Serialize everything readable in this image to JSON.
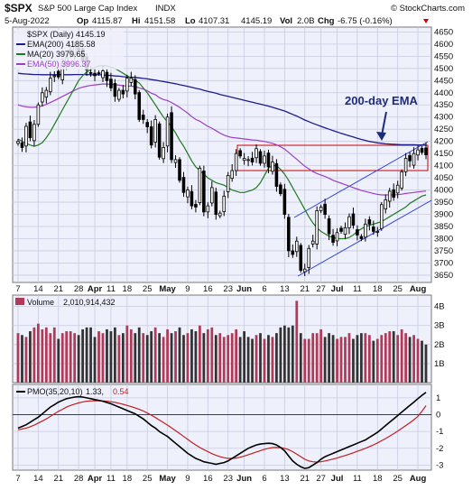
{
  "header": {
    "symbol": "$SPX",
    "name": "S&P 500 Large Cap Index",
    "exchange": "INDX",
    "date": "5-Aug-2022",
    "op_label": "Op",
    "op": "4115.87",
    "hi_label": "Hi",
    "hi": "4151.58",
    "lo_label": "Lo",
    "lo": "4107.31",
    "close": "4145.19",
    "vol_label": "Vol",
    "vol": "2.0B",
    "chg_label": "Chg",
    "chg": "-6.75 (-0.16%)",
    "watermark": "© StockCharts.com"
  },
  "legend": {
    "price": "$SPX (Daily) 4145.19",
    "ema200": "EMA(200) 4185.58",
    "ma20": "MA(20) 3979.65",
    "ema50": "EMA(50) 3996.37",
    "volume_label": "Volume",
    "volume_value": "2,010,914,432",
    "pmo_label": "PMO(35,20,10)",
    "pmo_value": "1.33,",
    "pmo_signal": "0.54"
  },
  "annotation": {
    "text": "200-day EMA"
  },
  "colors": {
    "grid_bg": "#eef0fb",
    "up_candle": "#ffffff",
    "down_candle": "#000000",
    "ema200": "#1c1c8a",
    "ma20": "#1f7a1f",
    "ema50": "#9b3fc4",
    "trend": "#2a3fe0",
    "box": "#cc0000",
    "volume_up": "#b03a58",
    "volume_down": "#333333",
    "pmo": "#000000",
    "pmo_signal": "#c02020",
    "zero_line": "#cc0000"
  },
  "chart_data": {
    "type": "candlestick",
    "price_axis": {
      "ticks": [
        3650,
        3700,
        3750,
        3800,
        3850,
        3900,
        3950,
        4000,
        4050,
        4100,
        4150,
        4200,
        4250,
        4300,
        4350,
        4400,
        4450,
        4500,
        4550,
        4600,
        4650
      ],
      "range": [
        3620,
        4670
      ]
    },
    "volume_axis": {
      "ticks": [
        "1B",
        "2B",
        "3B",
        "4B"
      ],
      "range": [
        0,
        4.6
      ]
    },
    "pmo_axis": {
      "ticks": [
        "-3",
        "-2",
        "-1",
        "0",
        "1"
      ],
      "range": [
        -3.3,
        1.8
      ]
    },
    "x_ticks": [
      {
        "i": 0,
        "label": "7"
      },
      {
        "i": 5,
        "label": "14"
      },
      {
        "i": 10,
        "label": "21"
      },
      {
        "i": 15,
        "label": "28"
      },
      {
        "i": 19,
        "label": "Apr"
      },
      {
        "i": 23,
        "label": "11"
      },
      {
        "i": 27,
        "label": "18"
      },
      {
        "i": 32,
        "label": "25"
      },
      {
        "i": 37,
        "label": "May"
      },
      {
        "i": 42,
        "label": "9"
      },
      {
        "i": 47,
        "label": "16"
      },
      {
        "i": 52,
        "label": "23"
      },
      {
        "i": 56,
        "label": "Jun"
      },
      {
        "i": 61,
        "label": "6"
      },
      {
        "i": 66,
        "label": "13"
      },
      {
        "i": 71,
        "label": "21"
      },
      {
        "i": 75,
        "label": "27"
      },
      {
        "i": 79,
        "label": "Jul"
      },
      {
        "i": 84,
        "label": "11"
      },
      {
        "i": 89,
        "label": "18"
      },
      {
        "i": 94,
        "label": "25"
      },
      {
        "i": 99,
        "label": "Aug"
      }
    ],
    "closes": [
      4200,
      4175,
      4262,
      4215,
      4270,
      4350,
      4400,
      4410,
      4460,
      4470,
      4465,
      4520,
      4545,
      4575,
      4590,
      4575,
      4530,
      4495,
      4480,
      4470,
      4480,
      4490,
      4450,
      4420,
      4385,
      4410,
      4395,
      4460,
      4460,
      4395,
      4290,
      4290,
      4260,
      4185,
      4290,
      4135,
      4175,
      4300,
      4125,
      4125,
      4040,
      3990,
      4000,
      3935,
      3930,
      4090,
      3910,
      3935,
      4010,
      3900,
      3905,
      3975,
      4060,
      4080,
      4150,
      4140,
      4130,
      4125,
      4115,
      4170,
      4110,
      4140,
      4095,
      4115,
      4015,
      3985,
      3900,
      3750,
      3735,
      3790,
      3670,
      3675,
      3760,
      3790,
      3915,
      3930,
      3900,
      3820,
      3785,
      3825,
      3830,
      3845,
      3890,
      3855,
      3815,
      3800,
      3860,
      3860,
      3830,
      3830,
      3940,
      3960,
      3995,
      3970,
      4020,
      4075,
      4130,
      4120,
      4150,
      4165,
      4155,
      4145
    ],
    "volumes": [
      2.6,
      2.5,
      2.4,
      2.7,
      2.9,
      3.1,
      2.8,
      2.9,
      2.6,
      2.9,
      2.3,
      2.6,
      2.7,
      2.7,
      2.6,
      2.5,
      2.8,
      2.9,
      2.9,
      2.4,
      2.7,
      2.6,
      2.8,
      2.7,
      2.9,
      2.5,
      2.6,
      3.0,
      2.8,
      2.6,
      2.9,
      2.6,
      2.5,
      2.7,
      2.9,
      2.6,
      2.4,
      2.8,
      2.6,
      2.7,
      2.9,
      2.5,
      2.6,
      2.8,
      2.7,
      3.0,
      2.6,
      2.8,
      2.9,
      2.5,
      2.6,
      2.4,
      2.5,
      2.6,
      2.8,
      2.4,
      2.7,
      2.4,
      2.3,
      2.5,
      2.6,
      2.3,
      2.5,
      2.4,
      2.6,
      2.9,
      3.0,
      2.9,
      3.0,
      4.3,
      2.6,
      2.3,
      2.3,
      2.6,
      2.6,
      2.8,
      2.4,
      2.6,
      2.5,
      2.3,
      2.4,
      2.4,
      2.6,
      2.3,
      2.5,
      2.6,
      2.6,
      2.5,
      2.2,
      2.3,
      2.5,
      2.6,
      2.7,
      2.7,
      2.5,
      2.8,
      2.6,
      2.4,
      2.5,
      2.3,
      2.2,
      2.0
    ],
    "ema200": [
      4480,
      4478,
      4477,
      4476,
      4475,
      4475,
      4474,
      4474,
      4474,
      4474,
      4474,
      4474,
      4474,
      4474,
      4475,
      4475,
      4475,
      4475,
      4474,
      4474,
      4474,
      4473,
      4472,
      4471,
      4469,
      4468,
      4466,
      4465,
      4464,
      4463,
      4461,
      4459,
      4457,
      4454,
      4452,
      4449,
      4446,
      4443,
      4440,
      4437,
      4433,
      4430,
      4426,
      4422,
      4418,
      4415,
      4410,
      4406,
      4402,
      4398,
      4393,
      4389,
      4385,
      4381,
      4377,
      4373,
      4369,
      4365,
      4361,
      4357,
      4353,
      4349,
      4345,
      4340,
      4335,
      4330,
      4325,
      4318,
      4311,
      4304,
      4296,
      4288,
      4281,
      4274,
      4268,
      4262,
      4256,
      4250,
      4244,
      4239,
      4233,
      4228,
      4223,
      4218,
      4213,
      4208,
      4204,
      4200,
      4197,
      4194,
      4192,
      4190,
      4189,
      4188,
      4187,
      4186,
      4186,
      4186,
      4186,
      4185,
      4185,
      4185
    ],
    "ma20": [
      4210,
      4200,
      4192,
      4185,
      4180,
      4185,
      4195,
      4215,
      4240,
      4270,
      4300,
      4330,
      4360,
      4390,
      4420,
      4450,
      4470,
      4485,
      4495,
      4505,
      4510,
      4512,
      4510,
      4505,
      4500,
      4490,
      4480,
      4470,
      4460,
      4450,
      4440,
      4420,
      4400,
      4375,
      4350,
      4325,
      4300,
      4280,
      4260,
      4235,
      4205,
      4180,
      4150,
      4120,
      4095,
      4080,
      4065,
      4050,
      4040,
      4030,
      4025,
      4020,
      4010,
      4000,
      3995,
      3990,
      3990,
      3995,
      4000,
      4010,
      4030,
      4060,
      4090,
      4100,
      4100,
      4085,
      4065,
      4040,
      4010,
      3980,
      3950,
      3920,
      3890,
      3865,
      3845,
      3830,
      3820,
      3810,
      3805,
      3800,
      3800,
      3800,
      3805,
      3815,
      3830,
      3840,
      3850,
      3855,
      3860,
      3865,
      3870,
      3880,
      3890,
      3900,
      3910,
      3920,
      3930,
      3945,
      3955,
      3965,
      3975,
      3980
    ],
    "ema50": [
      4350,
      4345,
      4342,
      4340,
      4340,
      4342,
      4346,
      4352,
      4360,
      4368,
      4376,
      4385,
      4393,
      4402,
      4410,
      4418,
      4423,
      4427,
      4430,
      4432,
      4434,
      4436,
      4436,
      4435,
      4433,
      4431,
      4429,
      4428,
      4427,
      4425,
      4420,
      4415,
      4408,
      4398,
      4392,
      4380,
      4372,
      4368,
      4360,
      4350,
      4340,
      4328,
      4316,
      4302,
      4290,
      4283,
      4272,
      4262,
      4254,
      4244,
      4234,
      4226,
      4220,
      4216,
      4214,
      4212,
      4210,
      4208,
      4206,
      4205,
      4202,
      4200,
      4196,
      4192,
      4186,
      4178,
      4168,
      4155,
      4140,
      4127,
      4112,
      4098,
      4087,
      4076,
      4068,
      4062,
      4056,
      4048,
      4040,
      4034,
      4028,
      4022,
      4016,
      4010,
      4004,
      3998,
      3994,
      3990,
      3986,
      3982,
      3980,
      3980,
      3980,
      3980,
      3981,
      3983,
      3986,
      3988,
      3990,
      3992,
      3994,
      3996
    ],
    "pmo": [
      -0.8,
      -0.7,
      -0.6,
      -0.45,
      -0.3,
      -0.15,
      0.05,
      0.25,
      0.45,
      0.6,
      0.75,
      0.85,
      0.95,
      1.0,
      1.05,
      1.07,
      1.05,
      1.0,
      0.95,
      0.9,
      0.85,
      0.8,
      0.72,
      0.65,
      0.55,
      0.45,
      0.35,
      0.25,
      0.15,
      0.05,
      -0.1,
      -0.25,
      -0.45,
      -0.65,
      -0.8,
      -1.0,
      -1.15,
      -1.3,
      -1.5,
      -1.7,
      -1.9,
      -2.1,
      -2.3,
      -2.45,
      -2.6,
      -2.7,
      -2.8,
      -2.85,
      -2.9,
      -2.95,
      -2.9,
      -2.85,
      -2.75,
      -2.6,
      -2.45,
      -2.3,
      -2.15,
      -2.0,
      -1.9,
      -1.8,
      -1.75,
      -1.72,
      -1.7,
      -1.72,
      -1.8,
      -1.95,
      -2.15,
      -2.45,
      -2.75,
      -2.95,
      -3.1,
      -3.2,
      -3.15,
      -3.0,
      -2.85,
      -2.65,
      -2.5,
      -2.4,
      -2.3,
      -2.2,
      -2.1,
      -2.0,
      -1.9,
      -1.8,
      -1.7,
      -1.6,
      -1.5,
      -1.35,
      -1.2,
      -1.05,
      -0.85,
      -0.65,
      -0.45,
      -0.25,
      -0.05,
      0.15,
      0.35,
      0.55,
      0.75,
      0.95,
      1.15,
      1.33
    ],
    "pmo_sig": [
      -0.9,
      -0.85,
      -0.8,
      -0.72,
      -0.62,
      -0.5,
      -0.38,
      -0.25,
      -0.1,
      0.05,
      0.2,
      0.32,
      0.45,
      0.55,
      0.63,
      0.7,
      0.76,
      0.8,
      0.82,
      0.83,
      0.83,
      0.82,
      0.8,
      0.77,
      0.73,
      0.68,
      0.62,
      0.55,
      0.48,
      0.4,
      0.32,
      0.22,
      0.1,
      -0.03,
      -0.17,
      -0.32,
      -0.47,
      -0.62,
      -0.78,
      -0.95,
      -1.12,
      -1.3,
      -1.47,
      -1.64,
      -1.8,
      -1.95,
      -2.08,
      -2.2,
      -2.32,
      -2.42,
      -2.5,
      -2.56,
      -2.6,
      -2.6,
      -2.58,
      -2.53,
      -2.46,
      -2.38,
      -2.3,
      -2.22,
      -2.14,
      -2.06,
      -2.0,
      -1.96,
      -1.95,
      -1.96,
      -2.0,
      -2.08,
      -2.2,
      -2.35,
      -2.5,
      -2.65,
      -2.75,
      -2.8,
      -2.82,
      -2.8,
      -2.75,
      -2.7,
      -2.64,
      -2.58,
      -2.5,
      -2.43,
      -2.35,
      -2.27,
      -2.18,
      -2.1,
      -2.0,
      -1.9,
      -1.8,
      -1.68,
      -1.55,
      -1.42,
      -1.28,
      -1.13,
      -0.98,
      -0.82,
      -0.65,
      -0.48,
      -0.3,
      -0.1,
      0.2,
      0.54
    ]
  }
}
